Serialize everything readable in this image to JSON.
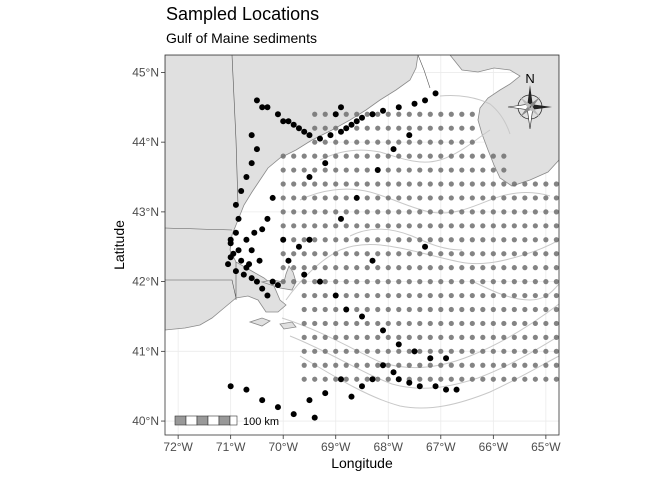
{
  "title": "Sampled Locations",
  "subtitle": "Gulf of Maine sediments",
  "x_axis": {
    "label": "Longitude",
    "ticks": [
      "72°W",
      "71°W",
      "70°W",
      "69°W",
      "68°W",
      "67°W",
      "66°W",
      "65°W"
    ],
    "tick_values": [
      -72,
      -71,
      -70,
      -69,
      -68,
      -67,
      -66,
      -65
    ],
    "range": [
      -72.25,
      -64.75
    ]
  },
  "y_axis": {
    "label": "Latitude",
    "ticks": [
      "40°N",
      "41°N",
      "42°N",
      "43°N",
      "44°N",
      "45°N"
    ],
    "tick_values": [
      40,
      41,
      42,
      43,
      44,
      45
    ],
    "range": [
      39.8,
      45.25
    ]
  },
  "scale_bar": {
    "label": "100 km"
  },
  "north_arrow": {
    "label": "N"
  },
  "colors": {
    "land": "#e0e0e0",
    "coast_line": "#8a8a8a",
    "border_line": "#555555",
    "bathymetry": "#c8c8c8",
    "grid": "#ebebeb",
    "grid_station_point": "#6e6e6e",
    "coastal_point": "#000000"
  },
  "chart_data": {
    "type": "scatter",
    "grid_stations": {
      "lon_start": -70.0,
      "lon_end": -64.6,
      "lon_step": 0.2,
      "lat_start": 40.6,
      "lat_end": 44.4,
      "lat_step": 0.2
    },
    "coastal_samples": [
      [
        -70.5,
        44.6
      ],
      [
        -70.4,
        44.5
      ],
      [
        -70.3,
        44.5
      ],
      [
        -70.1,
        44.4
      ],
      [
        -70.0,
        44.3
      ],
      [
        -69.9,
        44.3
      ],
      [
        -69.8,
        44.25
      ],
      [
        -69.7,
        44.2
      ],
      [
        -69.6,
        44.15
      ],
      [
        -69.5,
        44.1
      ],
      [
        -69.3,
        44.05
      ],
      [
        -69.1,
        44.1
      ],
      [
        -68.9,
        44.15
      ],
      [
        -68.8,
        44.2
      ],
      [
        -68.7,
        44.25
      ],
      [
        -68.6,
        44.3
      ],
      [
        -68.5,
        44.35
      ],
      [
        -68.3,
        44.4
      ],
      [
        -68.1,
        44.45
      ],
      [
        -67.8,
        44.5
      ],
      [
        -67.5,
        44.55
      ],
      [
        -67.3,
        44.6
      ],
      [
        -67.1,
        44.7
      ],
      [
        -68.9,
        44.5
      ],
      [
        -69.0,
        44.4
      ],
      [
        -70.6,
        44.1
      ],
      [
        -70.5,
        43.9
      ],
      [
        -70.6,
        43.7
      ],
      [
        -70.7,
        43.5
      ],
      [
        -70.8,
        43.3
      ],
      [
        -70.9,
        43.1
      ],
      [
        -70.85,
        42.9
      ],
      [
        -70.9,
        42.7
      ],
      [
        -71.0,
        42.55
      ],
      [
        -70.95,
        42.4
      ],
      [
        -70.8,
        42.3
      ],
      [
        -70.7,
        42.2
      ],
      [
        -70.6,
        42.05
      ],
      [
        -70.5,
        42.0
      ],
      [
        -70.4,
        41.9
      ],
      [
        -70.3,
        41.8
      ],
      [
        -70.2,
        42.0
      ],
      [
        -70.1,
        41.95
      ],
      [
        -71.0,
        42.35
      ],
      [
        -71.05,
        42.25
      ],
      [
        -70.9,
        42.15
      ],
      [
        -70.75,
        42.1
      ],
      [
        -70.65,
        42.25
      ],
      [
        -70.85,
        42.45
      ],
      [
        -71.0,
        42.6
      ],
      [
        -70.7,
        42.6
      ],
      [
        -70.55,
        42.7
      ],
      [
        -70.4,
        42.75
      ],
      [
        -70.6,
        42.45
      ],
      [
        -70.45,
        42.3
      ],
      [
        -69.6,
        42.1
      ],
      [
        -69.3,
        42.0
      ],
      [
        -69.0,
        41.8
      ],
      [
        -68.8,
        41.6
      ],
      [
        -68.5,
        41.5
      ],
      [
        -68.1,
        41.3
      ],
      [
        -67.8,
        41.1
      ],
      [
        -67.5,
        41.0
      ],
      [
        -67.2,
        40.9
      ],
      [
        -66.9,
        40.9
      ],
      [
        -68.1,
        40.8
      ],
      [
        -67.9,
        40.7
      ],
      [
        -67.8,
        40.6
      ],
      [
        -67.6,
        40.55
      ],
      [
        -67.4,
        40.5
      ],
      [
        -67.1,
        40.5
      ],
      [
        -66.9,
        40.45
      ],
      [
        -66.7,
        40.45
      ],
      [
        -68.3,
        40.6
      ],
      [
        -68.5,
        40.5
      ],
      [
        -68.9,
        40.6
      ],
      [
        -69.2,
        40.4
      ],
      [
        -69.5,
        40.3
      ],
      [
        -69.8,
        40.1
      ],
      [
        -70.1,
        40.2
      ],
      [
        -70.4,
        40.3
      ],
      [
        -70.7,
        40.45
      ],
      [
        -71.0,
        40.5
      ],
      [
        -69.4,
        40.05
      ],
      [
        -68.7,
        40.35
      ],
      [
        -69.9,
        42.3
      ],
      [
        -69.7,
        42.5
      ],
      [
        -69.5,
        42.6
      ],
      [
        -68.9,
        42.9
      ],
      [
        -68.6,
        43.2
      ],
      [
        -68.2,
        43.6
      ],
      [
        -67.9,
        43.9
      ],
      [
        -67.6,
        44.1
      ],
      [
        -69.2,
        43.7
      ],
      [
        -69.5,
        43.5
      ],
      [
        -70.2,
        43.2
      ],
      [
        -70.3,
        42.9
      ],
      [
        -70.0,
        42.6
      ],
      [
        -68.3,
        42.3
      ],
      [
        -67.3,
        42.5
      ]
    ]
  }
}
